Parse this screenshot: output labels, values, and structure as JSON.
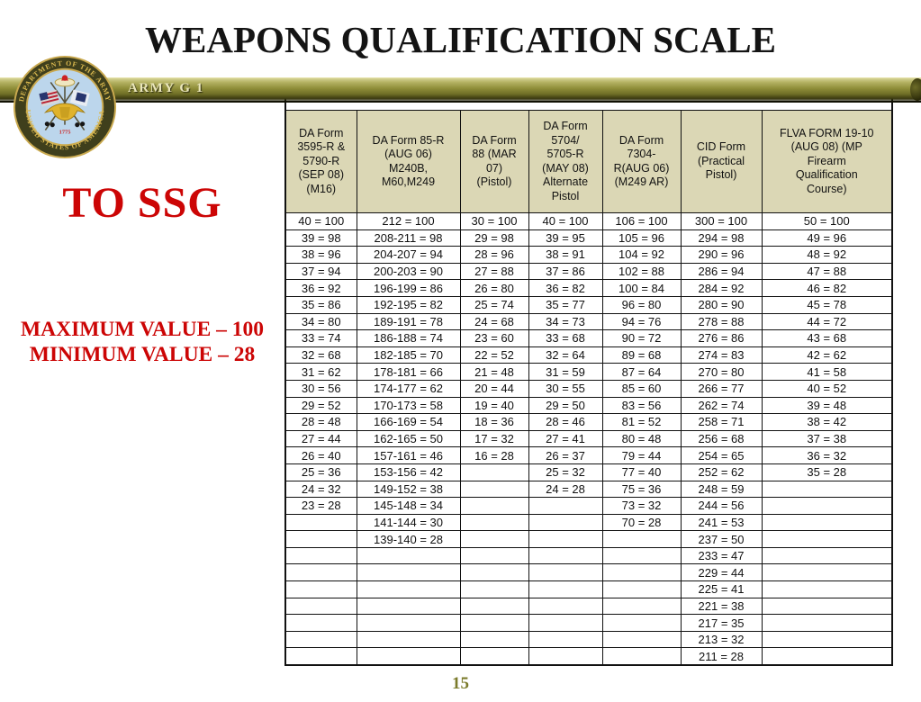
{
  "slide": {
    "title": "WEAPONS QUALIFICATION SCALE",
    "banner_label": "ARMY G 1",
    "grade_label": "TO SSG",
    "max_value_label": "MAXIMUM VALUE – 100",
    "min_value_label": "MINIMUM VALUE – 28",
    "page_number": "15",
    "seal": {
      "top_text": "DEPARTMENT OF THE ARMY",
      "bottom_text": "UNITED STATES OF AMERICA",
      "year": "1775"
    }
  },
  "colors": {
    "accent_red": "#cc0505",
    "banner_olive": "#8f8e38",
    "header_beige": "#dbd7b5",
    "table_border": "#111111",
    "page_number_olive": "#7b7b2b",
    "title_black": "#141414"
  },
  "table": {
    "columns": [
      "DA Form\n3595-R &\n5790-R\n(SEP 08)\n(M16)",
      "DA Form 85-R\n(AUG 06)\nM240B,\nM60,M249",
      "DA Form\n88 (MAR\n07)\n(Pistol)",
      "DA Form\n5704/\n5705-R\n(MAY 08)\nAlternate\nPistol",
      "DA Form\n7304-\nR(AUG 06)\n(M249 AR)",
      "CID Form\n(Practical\nPistol)",
      "FLVA FORM 19-10\n(AUG 08) (MP\nFirearm\nQualification\nCourse)"
    ],
    "rows": [
      [
        "40 = 100",
        "212 = 100",
        "30 = 100",
        "40 = 100",
        "106 = 100",
        "300 = 100",
        "50 = 100"
      ],
      [
        "39 = 98",
        "208-211 = 98",
        "29 = 98",
        "39 = 95",
        "105 = 96",
        "294 = 98",
        "49 = 96"
      ],
      [
        "38 = 96",
        "204-207 = 94",
        "28 = 96",
        "38 = 91",
        "104 = 92",
        "290 = 96",
        "48 = 92"
      ],
      [
        "37 = 94",
        "200-203 = 90",
        "27 = 88",
        "37 = 86",
        "102 = 88",
        "286 = 94",
        "47 = 88"
      ],
      [
        "36 = 92",
        "196-199 = 86",
        "26 = 80",
        "36 = 82",
        "100 = 84",
        "284 = 92",
        "46 = 82"
      ],
      [
        "35 = 86",
        "192-195 = 82",
        "25 = 74",
        "35 = 77",
        "96 = 80",
        "280 = 90",
        "45 = 78"
      ],
      [
        "34 = 80",
        "189-191 = 78",
        "24 = 68",
        "34 = 73",
        "94 = 76",
        "278 = 88",
        "44 = 72"
      ],
      [
        "33 = 74",
        "186-188 = 74",
        "23 = 60",
        "33 = 68",
        "90 = 72",
        "276 = 86",
        "43 = 68"
      ],
      [
        "32 = 68",
        "182-185 = 70",
        "22 = 52",
        "32 = 64",
        "89 = 68",
        "274 = 83",
        "42 = 62"
      ],
      [
        "31 = 62",
        "178-181 = 66",
        "21 = 48",
        "31 = 59",
        "87 = 64",
        "270 = 80",
        "41 = 58"
      ],
      [
        "30 = 56",
        "174-177 = 62",
        "20 = 44",
        "30 = 55",
        "85 = 60",
        "266 = 77",
        "40 = 52"
      ],
      [
        "29 = 52",
        "170-173 = 58",
        "19 = 40",
        "29 = 50",
        "83 = 56",
        "262 = 74",
        "39 = 48"
      ],
      [
        "28 = 48",
        "166-169 = 54",
        "18 = 36",
        "28 = 46",
        "81 = 52",
        "258 = 71",
        "38 = 42"
      ],
      [
        "27 = 44",
        "162-165 = 50",
        "17 = 32",
        "27 = 41",
        "80 = 48",
        "256 = 68",
        "37 = 38"
      ],
      [
        "26 = 40",
        "157-161 = 46",
        "16 = 28",
        "26 = 37",
        "79 = 44",
        "254 = 65",
        "36 = 32"
      ],
      [
        "25 = 36",
        "153-156 = 42",
        "",
        "25 = 32",
        "77 = 40",
        "252 = 62",
        "35 = 28"
      ],
      [
        "24 = 32",
        "149-152 = 38",
        "",
        "24 = 28",
        "75 = 36",
        "248 = 59",
        ""
      ],
      [
        "23 = 28",
        "145-148 = 34",
        "",
        "",
        "73 = 32",
        "244 = 56",
        ""
      ],
      [
        "",
        "141-144 = 30",
        "",
        "",
        "70 = 28",
        "241 = 53",
        ""
      ],
      [
        "",
        "139-140 = 28",
        "",
        "",
        "",
        "237 = 50",
        ""
      ],
      [
        "",
        "",
        "",
        "",
        "",
        "233 = 47",
        ""
      ],
      [
        "",
        "",
        "",
        "",
        "",
        "229 = 44",
        ""
      ],
      [
        "",
        "",
        "",
        "",
        "",
        "225 = 41",
        ""
      ],
      [
        "",
        "",
        "",
        "",
        "",
        "221 = 38",
        ""
      ],
      [
        "",
        "",
        "",
        "",
        "",
        "217 = 35",
        ""
      ],
      [
        "",
        "",
        "",
        "",
        "",
        "213 = 32",
        ""
      ],
      [
        "",
        "",
        "",
        "",
        "",
        "211 = 28",
        ""
      ]
    ]
  }
}
